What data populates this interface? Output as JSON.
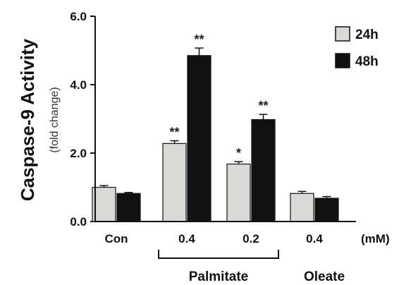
{
  "chart_data": {
    "type": "bar",
    "ylabel": "Caspase-9 Activity",
    "ylabel_sub": "(fold change)",
    "ylim": [
      0,
      6
    ],
    "yticks": [
      "0.0",
      "2.0",
      "4.0",
      "6.0"
    ],
    "categories": [
      "Con",
      "0.4",
      "0.2",
      "0.4"
    ],
    "unit_label": "(mM)",
    "groups": [
      {
        "label": "Palmitate",
        "categories": [
          1,
          2
        ]
      },
      {
        "label": "Oleate",
        "categories": [
          3
        ]
      }
    ],
    "series": [
      {
        "name": "24h",
        "color": "#d9d9d6",
        "values": [
          1.0,
          2.28,
          1.68,
          0.82
        ],
        "errors": [
          0.05,
          0.08,
          0.07,
          0.06
        ],
        "significance": [
          "",
          "**",
          "*",
          ""
        ]
      },
      {
        "name": "48h",
        "color": "#111111",
        "values": [
          0.82,
          4.85,
          2.98,
          0.68
        ],
        "errors": [
          0.03,
          0.22,
          0.15,
          0.05
        ],
        "significance": [
          "",
          "**",
          "**",
          ""
        ]
      }
    ],
    "legend_position": "top-right",
    "grid": false
  }
}
